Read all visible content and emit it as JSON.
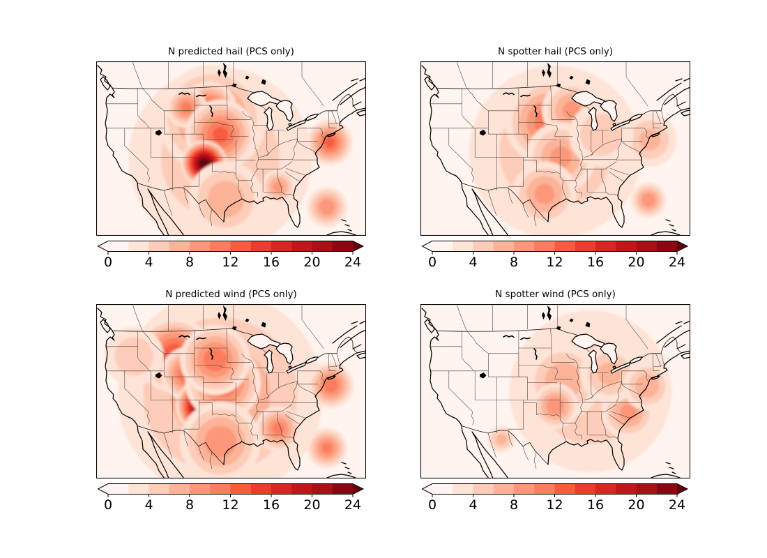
{
  "colorbar": {
    "orientation": "horizontal",
    "range": [
      0,
      24
    ],
    "levels_step": 2,
    "extend": "both",
    "colormap": "Reds",
    "ticks": [
      0,
      4,
      8,
      12,
      16,
      20,
      24
    ],
    "tick_labels": [
      "0",
      "4",
      "8",
      "12",
      "16",
      "20",
      "24"
    ],
    "band_colors": [
      "#fff4ef",
      "#fee3d7",
      "#fdcdb9",
      "#fcb398",
      "#fc9879",
      "#fb7d5d",
      "#f75c41",
      "#ef3b2c",
      "#d92623",
      "#c1171c",
      "#a81016",
      "#8a0711"
    ],
    "under_color": "#fff5f0",
    "over_color": "#67000d"
  },
  "chart_data": [
    {
      "type": "heatmap",
      "title": "N predicted hail (PCS only)",
      "region": "CONUS map with state boundaries",
      "colormap": "Reds",
      "value_range": [
        0,
        24
      ],
      "colorbar_ticks": [
        0,
        4,
        8,
        12,
        16,
        20,
        24
      ],
      "hotspots": [
        {
          "name": "central-us-broad-wash",
          "x": 0.46,
          "y": 0.56,
          "r": 0.34,
          "peak": 5
        },
        {
          "name": "northern-plains",
          "x": 0.43,
          "y": 0.33,
          "r": 0.2,
          "peak": 10
        },
        {
          "name": "nd-mt-border",
          "x": 0.42,
          "y": 0.27,
          "r": 0.1,
          "peak": 12
        },
        {
          "name": "mt-wy-border",
          "x": 0.335,
          "y": 0.265,
          "r": 0.075,
          "peak": 10
        },
        {
          "name": "nebraska",
          "x": 0.46,
          "y": 0.42,
          "r": 0.13,
          "peak": 12
        },
        {
          "name": "eastern-colorado-maximum",
          "x": 0.4,
          "y": 0.585,
          "r": 0.085,
          "peak": 26
        },
        {
          "name": "north-carolina-coast",
          "x": 0.865,
          "y": 0.465,
          "r": 0.085,
          "peak": 12
        },
        {
          "name": "alabama-mississippi",
          "x": 0.675,
          "y": 0.72,
          "r": 0.065,
          "peak": 8
        },
        {
          "name": "florida",
          "x": 0.855,
          "y": 0.835,
          "r": 0.075,
          "peak": 9
        },
        {
          "name": "texas",
          "x": 0.48,
          "y": 0.79,
          "r": 0.14,
          "peak": 7
        }
      ]
    },
    {
      "type": "heatmap",
      "title": "N spotter hail (PCS only)",
      "region": "CONUS map with state boundaries",
      "colormap": "Reds",
      "value_range": [
        0,
        24
      ],
      "colorbar_ticks": [
        0,
        4,
        8,
        12,
        16,
        20,
        24
      ],
      "hotspots": [
        {
          "name": "central-us-broad-wash",
          "x": 0.5,
          "y": 0.52,
          "r": 0.32,
          "peak": 5
        },
        {
          "name": "sd-ne-ia",
          "x": 0.475,
          "y": 0.35,
          "r": 0.16,
          "peak": 11
        },
        {
          "name": "mn-wi",
          "x": 0.56,
          "y": 0.28,
          "r": 0.11,
          "peak": 8
        },
        {
          "name": "ks-co-border",
          "x": 0.465,
          "y": 0.575,
          "r": 0.085,
          "peak": 10
        },
        {
          "name": "central-kansas",
          "x": 0.52,
          "y": 0.55,
          "r": 0.13,
          "peak": 8
        },
        {
          "name": "texas",
          "x": 0.46,
          "y": 0.76,
          "r": 0.12,
          "peak": 8
        },
        {
          "name": "florida",
          "x": 0.845,
          "y": 0.795,
          "r": 0.065,
          "peak": 9
        },
        {
          "name": "virginia-nc",
          "x": 0.85,
          "y": 0.45,
          "r": 0.1,
          "peak": 6
        },
        {
          "name": "ohio-valley",
          "x": 0.67,
          "y": 0.42,
          "r": 0.12,
          "peak": 5
        }
      ]
    },
    {
      "type": "heatmap",
      "title": "N predicted wind (PCS only)",
      "region": "CONUS map with state boundaries",
      "colormap": "Reds",
      "value_range": [
        0,
        24
      ],
      "colorbar_ticks": [
        0,
        4,
        8,
        12,
        16,
        20,
        24
      ],
      "hotspots": [
        {
          "name": "central-us-broad-wash",
          "x": 0.46,
          "y": 0.52,
          "r": 0.38,
          "peak": 7
        },
        {
          "name": "montana",
          "x": 0.29,
          "y": 0.29,
          "r": 0.14,
          "peak": 13
        },
        {
          "name": "wyoming",
          "x": 0.34,
          "y": 0.4,
          "r": 0.1,
          "peak": 12
        },
        {
          "name": "eastern-colorado-maximum",
          "x": 0.4,
          "y": 0.585,
          "r": 0.105,
          "peak": 27
        },
        {
          "name": "nebraska-kansas",
          "x": 0.47,
          "y": 0.45,
          "r": 0.14,
          "peak": 12
        },
        {
          "name": "dakotas",
          "x": 0.44,
          "y": 0.32,
          "r": 0.13,
          "peak": 11
        },
        {
          "name": "texas",
          "x": 0.46,
          "y": 0.79,
          "r": 0.15,
          "peak": 9
        },
        {
          "name": "mississippi-alabama",
          "x": 0.675,
          "y": 0.715,
          "r": 0.085,
          "peak": 10
        },
        {
          "name": "florida",
          "x": 0.855,
          "y": 0.825,
          "r": 0.075,
          "peak": 10
        },
        {
          "name": "north-carolina-coast",
          "x": 0.87,
          "y": 0.465,
          "r": 0.085,
          "peak": 11
        },
        {
          "name": "pacific-northwest",
          "x": 0.14,
          "y": 0.3,
          "r": 0.11,
          "peak": 5
        }
      ]
    },
    {
      "type": "heatmap",
      "title": "N spotter wind (PCS only)",
      "region": "CONUS map with state boundaries",
      "colormap": "Reds",
      "value_range": [
        0,
        24
      ],
      "colorbar_ticks": [
        0,
        4,
        8,
        12,
        16,
        20,
        24
      ],
      "hotspots": [
        {
          "name": "eastern-us-broad-wash",
          "x": 0.63,
          "y": 0.5,
          "r": 0.3,
          "peak": 5
        },
        {
          "name": "wisconsin-iowa",
          "x": 0.565,
          "y": 0.385,
          "r": 0.1,
          "peak": 10
        },
        {
          "name": "upper-midwest",
          "x": 0.53,
          "y": 0.44,
          "r": 0.14,
          "peak": 7
        },
        {
          "name": "kansas",
          "x": 0.5,
          "y": 0.585,
          "r": 0.085,
          "peak": 9
        },
        {
          "name": "sc-ga-coast",
          "x": 0.8,
          "y": 0.675,
          "r": 0.055,
          "peak": 13
        },
        {
          "name": "georgia",
          "x": 0.77,
          "y": 0.62,
          "r": 0.1,
          "peak": 8
        },
        {
          "name": "new-mexico",
          "x": 0.3,
          "y": 0.775,
          "r": 0.05,
          "peak": 6
        },
        {
          "name": "ohio-pennsylvania",
          "x": 0.7,
          "y": 0.4,
          "r": 0.11,
          "peak": 6
        },
        {
          "name": "virginia-nc",
          "x": 0.84,
          "y": 0.47,
          "r": 0.09,
          "peak": 7
        }
      ]
    }
  ]
}
